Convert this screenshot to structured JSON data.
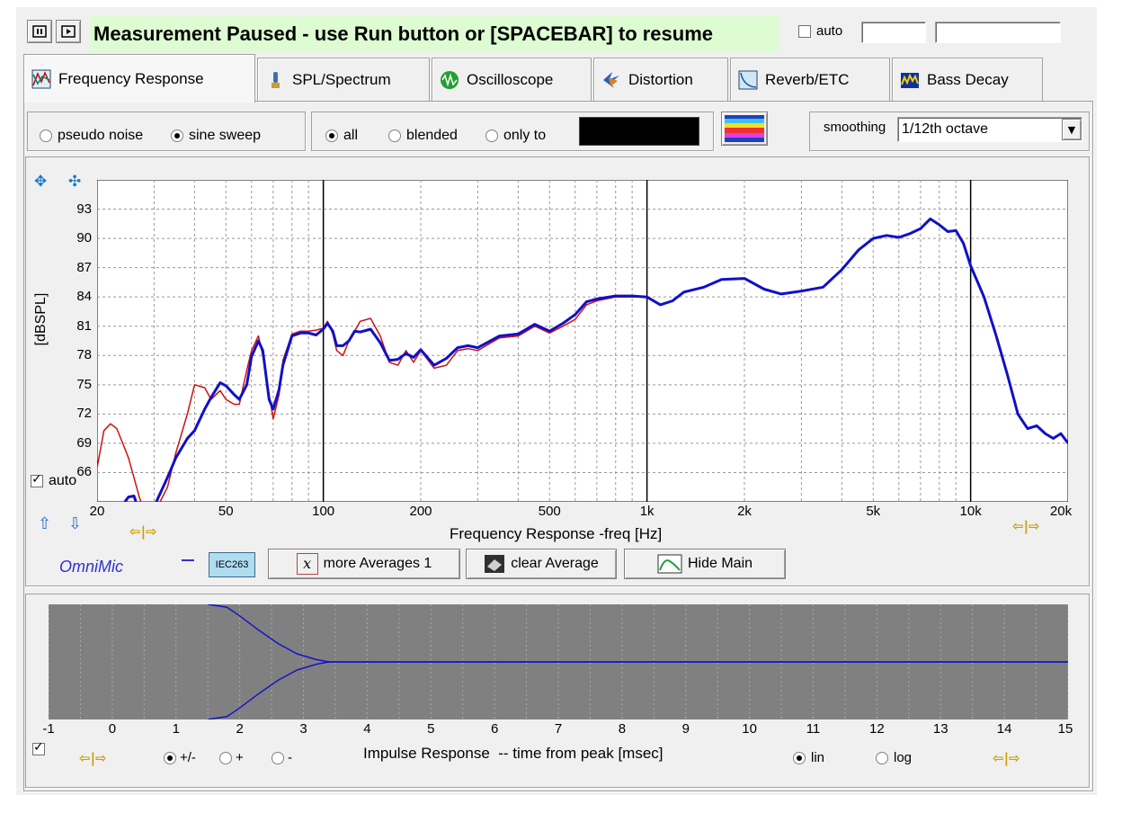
{
  "toolbar": {
    "pause_icon": "pause-icon",
    "play_icon": "play-icon",
    "status_text": "Measurement Paused - use Run button or [SPACEBAR] to resume",
    "auto_label": "auto",
    "auto_checked": false,
    "auto_field_1": "",
    "auto_field_2": ""
  },
  "tabs": [
    {
      "label": "Frequency Response",
      "icon": "frequency-response-icon",
      "active": true
    },
    {
      "label": "SPL/Spectrum",
      "icon": "spl-spectrum-icon"
    },
    {
      "label": "Oscilloscope",
      "icon": "oscilloscope-icon"
    },
    {
      "label": "Distortion",
      "icon": "distortion-icon"
    },
    {
      "label": "Reverb/ETC",
      "icon": "reverb-etc-icon"
    },
    {
      "label": "Bass Decay",
      "icon": "bass-decay-icon"
    }
  ],
  "options": {
    "pseudo_noise": "pseudo noise",
    "sine_sweep": "sine sweep",
    "selected_signal": "sine sweep",
    "all": "all",
    "blended": "blended",
    "only_to": "only to",
    "selected_scope": "all",
    "smoothing_label": "smoothing",
    "smoothing_value": "1/12th octave"
  },
  "freq_plot": {
    "ylabel": "[dBSPL]",
    "xlabel": "Frequency Response -freq [Hz]",
    "auto_label": "auto",
    "auto_checked": true,
    "y_ticks": [
      "93",
      "90",
      "87",
      "84",
      "81",
      "78",
      "75",
      "72",
      "69",
      "66"
    ],
    "x_ticks": [
      "20",
      "50",
      "100",
      "200",
      "500",
      "1k",
      "2k",
      "5k",
      "10k",
      "20k"
    ],
    "omnimic_label": "OmniMic",
    "iec_label": "IEC263",
    "more_averages_label": "more Averages 1",
    "clear_average_label": "clear Average",
    "hide_main_label": "Hide Main"
  },
  "impulse_plot": {
    "xlabel": "Impulse Response  -- time from peak [msec]",
    "x_ticks": [
      "-1",
      "0",
      "1",
      "2",
      "3",
      "4",
      "5",
      "6",
      "7",
      "8",
      "9",
      "10",
      "11",
      "12",
      "13",
      "14",
      "15"
    ],
    "pm_label": "+/-",
    "plus_label": "+",
    "minus_label": "-",
    "lin_label": "lin",
    "log_label": "log",
    "checked": true
  },
  "colors": {
    "status_bg": "#ddfcd2",
    "main_curve": "#1010c8",
    "avg_curve": "#d01010",
    "plot_grid": "#999999",
    "impulse_bg": "#808080",
    "omnimic": "#3030d0"
  },
  "chart_data": [
    {
      "type": "line",
      "xscale": "log",
      "xlim": [
        20,
        20000
      ],
      "ylim": [
        63,
        96
      ],
      "xlabel": "Frequency Response -freq [Hz]",
      "ylabel": "[dBSPL]",
      "grid": true,
      "series": [
        {
          "x": [
            20,
            21,
            22,
            23,
            24,
            25,
            26,
            27,
            28,
            30,
            33,
            35,
            38,
            40,
            43,
            45,
            48,
            50,
            53,
            55,
            58,
            60,
            63,
            65,
            68,
            70,
            73,
            75,
            80,
            85,
            90,
            95,
            100,
            103,
            107,
            110,
            115,
            120,
            125,
            130,
            140,
            150,
            160,
            170,
            180,
            190,
            200,
            220,
            240,
            260,
            280,
            300,
            350,
            400,
            450,
            500,
            550,
            600,
            650,
            700,
            800,
            900,
            1000,
            1100,
            1200,
            1300,
            1500,
            1700,
            2000,
            2300,
            2600,
            3000,
            3500,
            4000,
            4500,
            5000,
            5500,
            6000,
            6500,
            7000,
            7500,
            8000,
            8500,
            9000,
            9500,
            10000,
            11000,
            12000,
            13000,
            14000,
            15000,
            16000,
            17000,
            18000,
            19000,
            20000
          ],
          "values": [
            62.5,
            62.8,
            62.2,
            62.0,
            62.7,
            63.5,
            63.6,
            62.0,
            60.9,
            62.5,
            65.5,
            67.5,
            69.5,
            70.3,
            72.5,
            73.7,
            75.2,
            74.9,
            74.0,
            73.5,
            75.0,
            77.9,
            79.5,
            78.5,
            73.5,
            72.5,
            74.5,
            77.0,
            80.0,
            80.3,
            80.3,
            80.1,
            80.7,
            81.3,
            80.5,
            79.0,
            79.0,
            79.5,
            80.5,
            80.4,
            80.7,
            79.3,
            77.5,
            77.6,
            78.2,
            77.8,
            78.6,
            77.0,
            77.7,
            78.8,
            79.0,
            78.8,
            80.0,
            80.2,
            81.2,
            80.5,
            81.3,
            82.2,
            83.5,
            83.8,
            84.1,
            84.1,
            84.0,
            83.2,
            83.6,
            84.5,
            85.0,
            85.8,
            85.9,
            84.8,
            84.3,
            84.6,
            85.0,
            86.8,
            88.8,
            90.0,
            90.3,
            90.1,
            90.5,
            91.0,
            92.0,
            91.4,
            90.7,
            90.8,
            89.5,
            87.2,
            84.0,
            80.0,
            76.0,
            72.0,
            70.5,
            70.8,
            70.0,
            69.5,
            70.0,
            69.0
          ]
        },
        {
          "x": [
            20,
            21,
            22,
            23,
            24,
            25,
            26,
            27,
            28,
            30,
            33,
            35,
            38,
            40,
            43,
            45,
            48,
            50,
            53,
            55,
            58,
            60,
            63,
            65,
            68,
            70,
            73,
            75,
            80,
            85,
            90,
            95,
            100,
            103,
            107,
            110,
            115,
            120,
            125,
            130,
            140,
            150,
            160,
            170,
            180,
            190,
            200,
            220,
            240,
            260,
            280,
            300,
            350,
            400,
            450,
            500,
            550,
            600,
            650,
            700,
            800,
            900,
            1000,
            1100,
            1200,
            1300,
            1500,
            1700,
            2000,
            2300,
            2600,
            3000,
            3500,
            4000,
            4500,
            5000,
            5500,
            6000,
            6500,
            7000,
            7500,
            8000,
            8500,
            9000,
            9500,
            10000,
            11000,
            12000,
            13000,
            14000,
            15000,
            16000,
            17000,
            18000,
            19000,
            20000
          ],
          "values": [
            66.5,
            70.3,
            71.0,
            70.5,
            69.0,
            67.5,
            65.5,
            63.5,
            62.0,
            61.8,
            64.5,
            68.0,
            72.0,
            75.0,
            74.7,
            73.5,
            74.4,
            73.5,
            73.0,
            73.0,
            76.5,
            78.5,
            80.0,
            78.0,
            74.0,
            71.5,
            74.0,
            77.5,
            80.2,
            80.5,
            80.5,
            80.6,
            80.8,
            81.5,
            80.2,
            78.5,
            78.0,
            79.5,
            80.5,
            81.5,
            81.8,
            80.0,
            77.3,
            77.0,
            78.5,
            77.3,
            78.5,
            76.7,
            77.0,
            78.5,
            78.7,
            78.5,
            79.8,
            80.0,
            81.0,
            80.3,
            81.0,
            81.7,
            83.2,
            83.6,
            84.0,
            84.0,
            84.0,
            83.2,
            83.6,
            84.5,
            85.0,
            85.8,
            85.9,
            84.8,
            84.3,
            84.6,
            85.0,
            86.8,
            88.8,
            90.0,
            90.3,
            90.1,
            90.5,
            91.0,
            92.0,
            91.4,
            90.7,
            90.8,
            89.5,
            87.2,
            84.0,
            80.0,
            76.0,
            72.0,
            70.5,
            70.8,
            70.0,
            69.5,
            70.0,
            69.0
          ]
        }
      ]
    },
    {
      "type": "line",
      "xlim": [
        -1,
        15
      ],
      "xlabel": "Impulse Response  -- time from peak [msec]",
      "grid": true,
      "series": [
        {
          "x": [
            1.5,
            1.8,
            2.0,
            2.3,
            2.6,
            2.9,
            3.2,
            3.4,
            4.0,
            15.0
          ],
          "values": [
            1.0,
            0.95,
            0.8,
            0.55,
            0.32,
            0.14,
            0.04,
            0.0,
            0.0,
            0.0
          ]
        },
        {
          "x": [
            1.5,
            1.8,
            2.0,
            2.3,
            2.6,
            2.9,
            3.2,
            3.4,
            4.0,
            15.0
          ],
          "values": [
            -1.0,
            -0.95,
            -0.8,
            -0.55,
            -0.32,
            -0.14,
            -0.04,
            0.0,
            0.0,
            0.0
          ]
        }
      ]
    }
  ]
}
